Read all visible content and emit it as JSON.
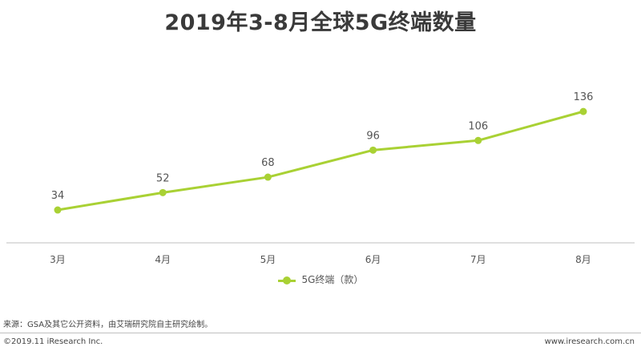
{
  "chart_data": {
    "type": "line",
    "title": "2019年3-8月全球5G终端数量",
    "categories": [
      "3月",
      "4月",
      "5月",
      "6月",
      "7月",
      "8月"
    ],
    "series": [
      {
        "name": "5G终端（款）",
        "values": [
          34,
          52,
          68,
          96,
          106,
          136
        ],
        "color": "#a9d134"
      }
    ],
    "ylim": [
      0,
      160
    ],
    "grid": false,
    "legend": "bottom-center",
    "data_labels": true
  },
  "footer": {
    "source": "来源：GSA及其它公开资料，由艾瑞研究院自主研究绘制。",
    "copyright": "©2019.11 iResearch Inc.",
    "website": "www.iresearch.com.cn"
  }
}
